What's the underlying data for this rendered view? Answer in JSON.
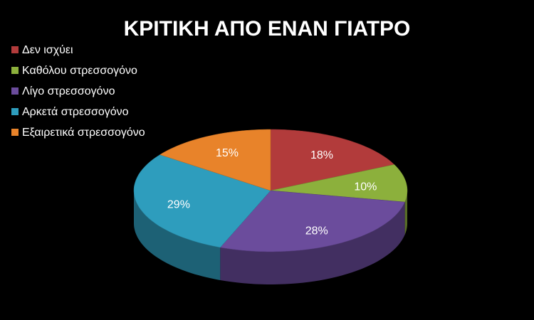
{
  "chart_data": {
    "type": "pie3d",
    "title": "ΚΡΙΤΙΚΗ ΑΠΟ ΕΝΑΝ ΓΙΑΤΡΟ",
    "categories": [
      "Δεν ισχύει",
      "Καθόλου στρεσσογόνο",
      "Λίγο στρεσσογόνο",
      "Αρκετά στρεσσογόνο",
      "Εξαιρετικά στρεσσογόνο"
    ],
    "values": [
      18,
      10,
      28,
      29,
      15
    ],
    "value_labels": [
      "18%",
      "10%",
      "28%",
      "29%",
      "15%"
    ],
    "colors": [
      "#b23b3b",
      "#8cb03c",
      "#6b4c9c",
      "#2e9dbd",
      "#e8832a"
    ],
    "legend": "top-left"
  }
}
